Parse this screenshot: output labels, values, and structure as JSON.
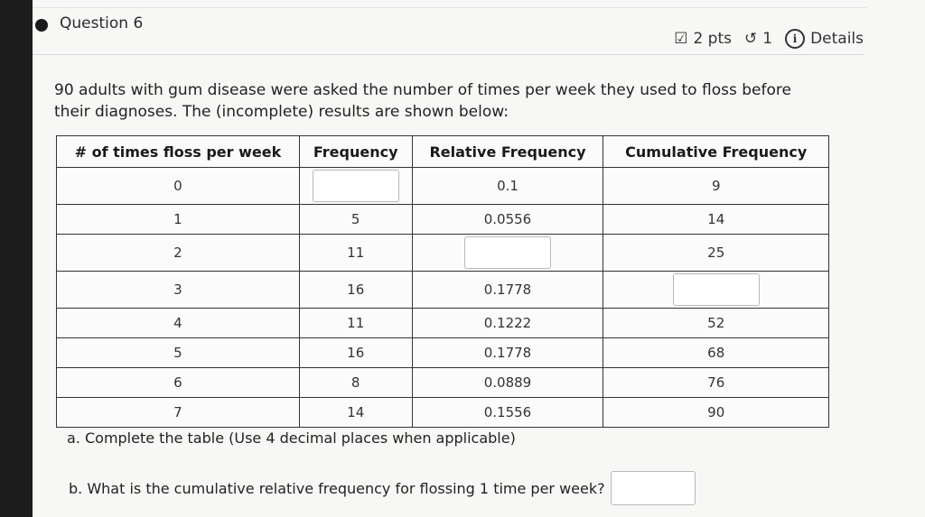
{
  "question": {
    "title": "Question 6",
    "points": "2 pts",
    "attempts": "1",
    "details": "Details"
  },
  "prompt": {
    "line1": "90 adults with gum disease were asked the number of times per week they used to floss before",
    "line2": "their diagnoses. The (incomplete) results are shown below:"
  },
  "table": {
    "headers": [
      "# of times floss per week",
      "Frequency",
      "Relative Frequency",
      "Cumulative Frequency"
    ],
    "rows": [
      {
        "times": "0",
        "frequency": "",
        "relative": "0.1",
        "cumulative": "9"
      },
      {
        "times": "1",
        "frequency": "5",
        "relative": "0.0556",
        "cumulative": "14"
      },
      {
        "times": "2",
        "frequency": "11",
        "relative": "",
        "cumulative": "25"
      },
      {
        "times": "3",
        "frequency": "16",
        "relative": "0.1778",
        "cumulative": ""
      },
      {
        "times": "4",
        "frequency": "11",
        "relative": "0.1222",
        "cumulative": "52"
      },
      {
        "times": "5",
        "frequency": "16",
        "relative": "0.1778",
        "cumulative": "68"
      },
      {
        "times": "6",
        "frequency": "8",
        "relative": "0.0889",
        "cumulative": "76"
      },
      {
        "times": "7",
        "frequency": "14",
        "relative": "0.1556",
        "cumulative": "90"
      }
    ]
  },
  "parts": {
    "a": "a.  Complete the table (Use 4 decimal places when applicable)",
    "b": "b.  What is the cumulative relative frequency for flossing 1 time per week?"
  },
  "icons": {
    "edit": "edit-checkbox-icon",
    "retry": "retry-icon",
    "info": "info-icon"
  }
}
